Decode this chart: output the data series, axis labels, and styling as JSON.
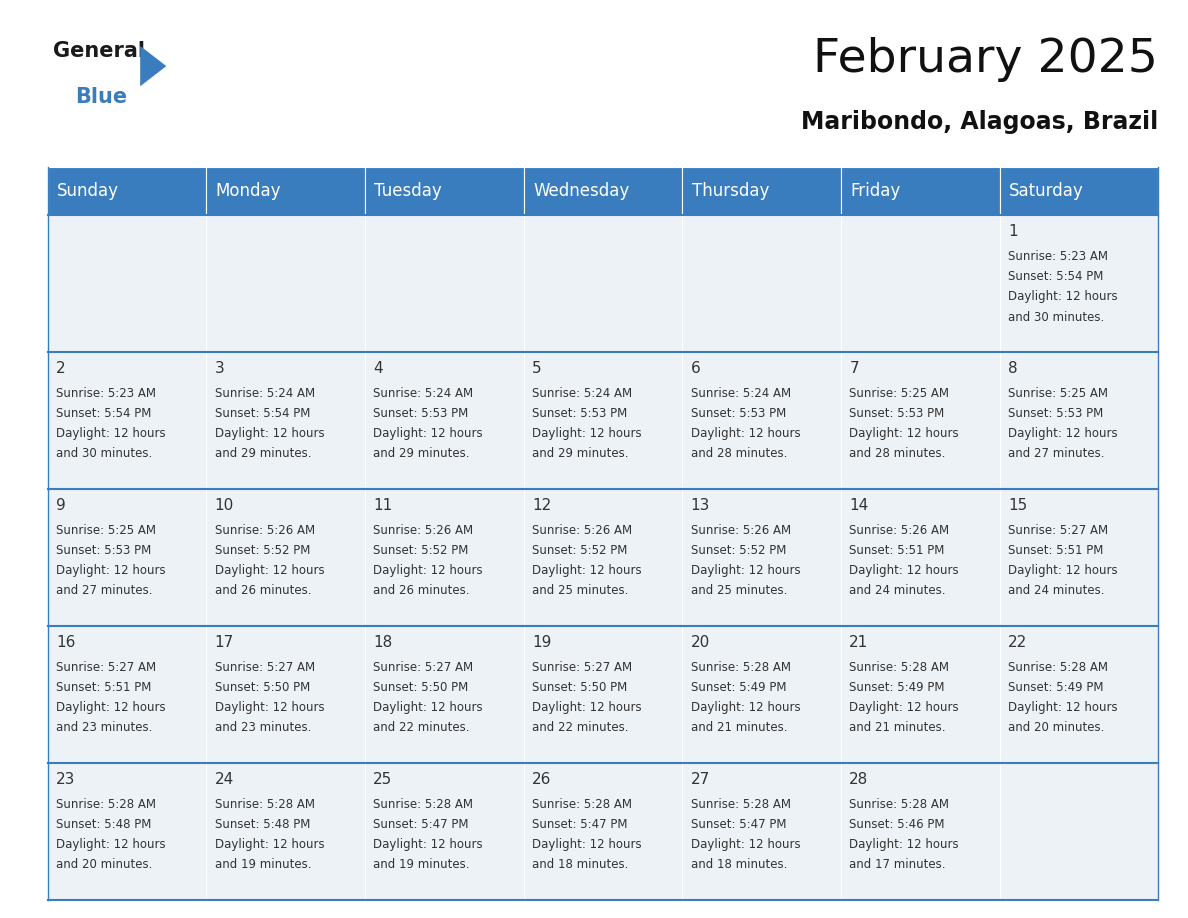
{
  "title": "February 2025",
  "subtitle": "Maribondo, Alagoas, Brazil",
  "header_color": "#3a7dbf",
  "header_text_color": "#ffffff",
  "background_color": "#ffffff",
  "cell_bg_color": "#edf2f7",
  "line_color": "#3a7dbf",
  "text_color": "#333333",
  "days_of_week": [
    "Sunday",
    "Monday",
    "Tuesday",
    "Wednesday",
    "Thursday",
    "Friday",
    "Saturday"
  ],
  "title_fontsize": 34,
  "subtitle_fontsize": 17,
  "day_header_fontsize": 12,
  "day_num_fontsize": 11,
  "cell_text_fontsize": 8.5,
  "logo_general_fontsize": 15,
  "logo_blue_fontsize": 15,
  "calendar_data": [
    [
      null,
      null,
      null,
      null,
      null,
      null,
      {
        "day": 1,
        "sunrise": "5:23 AM",
        "sunset": "5:54 PM",
        "daylight_hours": 12,
        "daylight_minutes": 30
      }
    ],
    [
      {
        "day": 2,
        "sunrise": "5:23 AM",
        "sunset": "5:54 PM",
        "daylight_hours": 12,
        "daylight_minutes": 30
      },
      {
        "day": 3,
        "sunrise": "5:24 AM",
        "sunset": "5:54 PM",
        "daylight_hours": 12,
        "daylight_minutes": 29
      },
      {
        "day": 4,
        "sunrise": "5:24 AM",
        "sunset": "5:53 PM",
        "daylight_hours": 12,
        "daylight_minutes": 29
      },
      {
        "day": 5,
        "sunrise": "5:24 AM",
        "sunset": "5:53 PM",
        "daylight_hours": 12,
        "daylight_minutes": 29
      },
      {
        "day": 6,
        "sunrise": "5:24 AM",
        "sunset": "5:53 PM",
        "daylight_hours": 12,
        "daylight_minutes": 28
      },
      {
        "day": 7,
        "sunrise": "5:25 AM",
        "sunset": "5:53 PM",
        "daylight_hours": 12,
        "daylight_minutes": 28
      },
      {
        "day": 8,
        "sunrise": "5:25 AM",
        "sunset": "5:53 PM",
        "daylight_hours": 12,
        "daylight_minutes": 27
      }
    ],
    [
      {
        "day": 9,
        "sunrise": "5:25 AM",
        "sunset": "5:53 PM",
        "daylight_hours": 12,
        "daylight_minutes": 27
      },
      {
        "day": 10,
        "sunrise": "5:26 AM",
        "sunset": "5:52 PM",
        "daylight_hours": 12,
        "daylight_minutes": 26
      },
      {
        "day": 11,
        "sunrise": "5:26 AM",
        "sunset": "5:52 PM",
        "daylight_hours": 12,
        "daylight_minutes": 26
      },
      {
        "day": 12,
        "sunrise": "5:26 AM",
        "sunset": "5:52 PM",
        "daylight_hours": 12,
        "daylight_minutes": 25
      },
      {
        "day": 13,
        "sunrise": "5:26 AM",
        "sunset": "5:52 PM",
        "daylight_hours": 12,
        "daylight_minutes": 25
      },
      {
        "day": 14,
        "sunrise": "5:26 AM",
        "sunset": "5:51 PM",
        "daylight_hours": 12,
        "daylight_minutes": 24
      },
      {
        "day": 15,
        "sunrise": "5:27 AM",
        "sunset": "5:51 PM",
        "daylight_hours": 12,
        "daylight_minutes": 24
      }
    ],
    [
      {
        "day": 16,
        "sunrise": "5:27 AM",
        "sunset": "5:51 PM",
        "daylight_hours": 12,
        "daylight_minutes": 23
      },
      {
        "day": 17,
        "sunrise": "5:27 AM",
        "sunset": "5:50 PM",
        "daylight_hours": 12,
        "daylight_minutes": 23
      },
      {
        "day": 18,
        "sunrise": "5:27 AM",
        "sunset": "5:50 PM",
        "daylight_hours": 12,
        "daylight_minutes": 22
      },
      {
        "day": 19,
        "sunrise": "5:27 AM",
        "sunset": "5:50 PM",
        "daylight_hours": 12,
        "daylight_minutes": 22
      },
      {
        "day": 20,
        "sunrise": "5:28 AM",
        "sunset": "5:49 PM",
        "daylight_hours": 12,
        "daylight_minutes": 21
      },
      {
        "day": 21,
        "sunrise": "5:28 AM",
        "sunset": "5:49 PM",
        "daylight_hours": 12,
        "daylight_minutes": 21
      },
      {
        "day": 22,
        "sunrise": "5:28 AM",
        "sunset": "5:49 PM",
        "daylight_hours": 12,
        "daylight_minutes": 20
      }
    ],
    [
      {
        "day": 23,
        "sunrise": "5:28 AM",
        "sunset": "5:48 PM",
        "daylight_hours": 12,
        "daylight_minutes": 20
      },
      {
        "day": 24,
        "sunrise": "5:28 AM",
        "sunset": "5:48 PM",
        "daylight_hours": 12,
        "daylight_minutes": 19
      },
      {
        "day": 25,
        "sunrise": "5:28 AM",
        "sunset": "5:47 PM",
        "daylight_hours": 12,
        "daylight_minutes": 19
      },
      {
        "day": 26,
        "sunrise": "5:28 AM",
        "sunset": "5:47 PM",
        "daylight_hours": 12,
        "daylight_minutes": 18
      },
      {
        "day": 27,
        "sunrise": "5:28 AM",
        "sunset": "5:47 PM",
        "daylight_hours": 12,
        "daylight_minutes": 18
      },
      {
        "day": 28,
        "sunrise": "5:28 AM",
        "sunset": "5:46 PM",
        "daylight_hours": 12,
        "daylight_minutes": 17
      },
      null
    ]
  ]
}
